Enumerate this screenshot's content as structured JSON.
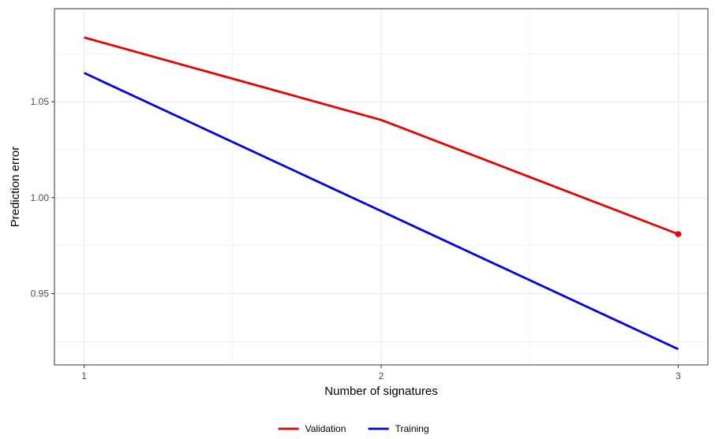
{
  "chart_data": {
    "type": "line",
    "title": "",
    "xlabel": "Number of signatures",
    "ylabel": "Prediction error",
    "x": [
      1,
      2,
      3
    ],
    "xticks": [
      "1",
      "2",
      "3"
    ],
    "yticks": [
      "0.95",
      "1.00",
      "1.05"
    ],
    "ytick_values": [
      0.95,
      1.0,
      1.05
    ],
    "xlim": [
      0.9,
      3.1
    ],
    "ylim": [
      0.9128,
      1.0985
    ],
    "grid": true,
    "legend_position": "bottom",
    "series": [
      {
        "name": "Validation",
        "color": "#ee0000",
        "values": [
          1.0835,
          1.0405,
          0.981
        ],
        "highlight_point": {
          "x": 3,
          "y": 0.981
        }
      },
      {
        "name": "Training",
        "color": "#0000ee",
        "values": [
          1.065,
          0.993,
          0.921
        ]
      }
    ]
  }
}
